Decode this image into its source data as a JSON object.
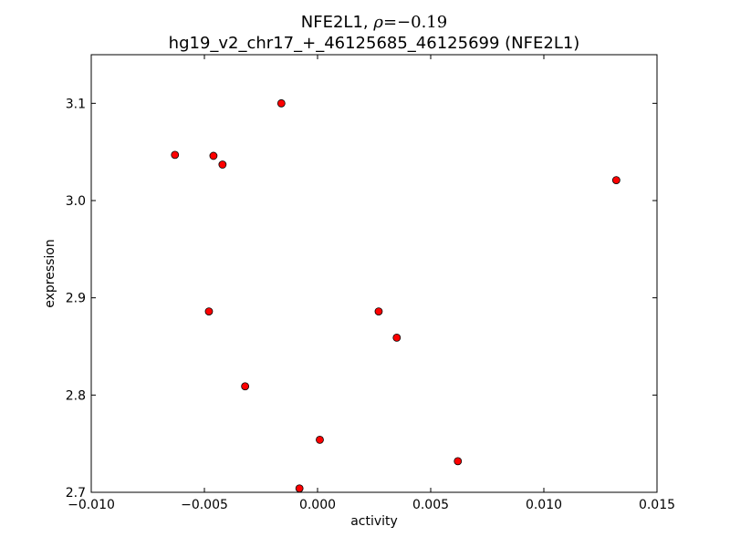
{
  "chart_data": {
    "type": "scatter",
    "title_gene": "NFE2L1, ",
    "title_rho_symbol": "ρ",
    "title_rho_value": "=−0.19",
    "subtitle": "hg19_v2_chr17_+_46125685_46125699 (NFE2L1)",
    "xlabel": "activity",
    "ylabel": "expression",
    "xlim": [
      -0.01,
      0.015
    ],
    "ylim": [
      2.7,
      3.15
    ],
    "x_ticks": [
      -0.01,
      -0.005,
      0.0,
      0.005,
      0.01,
      0.015
    ],
    "x_tick_labels": [
      "−0.010",
      "−0.005",
      "0.000",
      "0.005",
      "0.010",
      "0.015"
    ],
    "y_ticks": [
      2.7,
      2.8,
      2.9,
      3.0,
      3.1
    ],
    "y_tick_labels": [
      "2.7",
      "2.8",
      "2.9",
      "3.0",
      "3.1"
    ],
    "grid": false,
    "marker_color": "#ff0000",
    "marker_edge_color": "#000000",
    "points": [
      {
        "x": -0.0016,
        "y": 3.1
      },
      {
        "x": -0.0063,
        "y": 3.047
      },
      {
        "x": -0.0046,
        "y": 3.046
      },
      {
        "x": -0.0042,
        "y": 3.037
      },
      {
        "x": 0.0132,
        "y": 3.021
      },
      {
        "x": -0.0048,
        "y": 2.886
      },
      {
        "x": 0.0027,
        "y": 2.886
      },
      {
        "x": 0.0035,
        "y": 2.859
      },
      {
        "x": -0.0032,
        "y": 2.809
      },
      {
        "x": 0.0001,
        "y": 2.754
      },
      {
        "x": 0.0062,
        "y": 2.732
      },
      {
        "x": -0.0008,
        "y": 2.704
      }
    ]
  }
}
